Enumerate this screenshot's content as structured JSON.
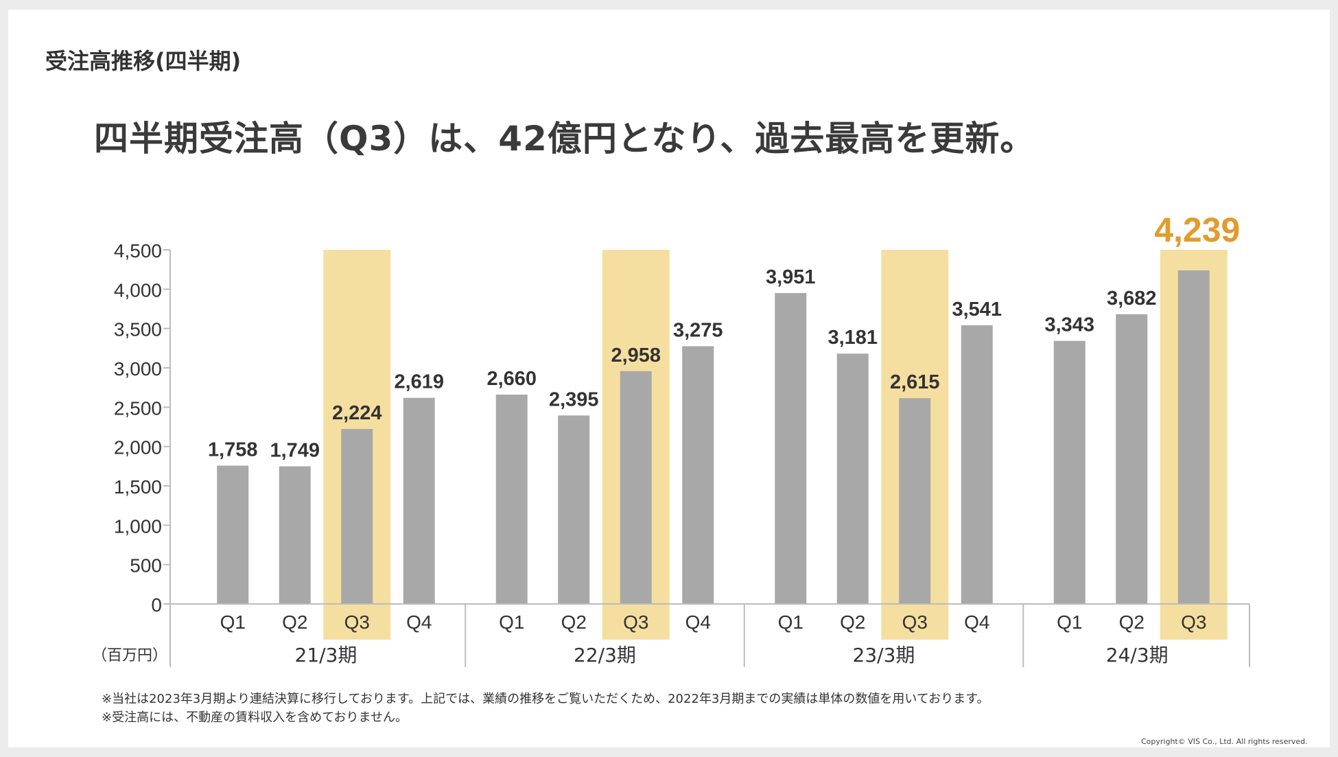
{
  "section_title": "受注高推移(四半期)",
  "headline": "四半期受注高（Q3）は、42億円となり、過去最高を更新。",
  "notes": {
    "line1": "※当社は2023年3月期より連結決算に移行しております。上記では、業績の推移をご覧いただくため、2022年3月期までの実績は単体の数値を用いております。",
    "line2": "※受注高には、不動産の賃料収入を含めておりません。"
  },
  "copyright": "Copyright© VIS Co., Ltd. All rights reserved.",
  "colors": {
    "bar": "#a8a8a8",
    "highlight": "#f5dfa0",
    "accent": "#e39b2c",
    "axis": "#bcbcbc",
    "text": "#333333"
  },
  "chart_data": {
    "type": "bar",
    "unit_label": "（百万円）",
    "ylim": [
      0,
      4500
    ],
    "y_ticks": [
      "0",
      "500",
      "1,000",
      "1,500",
      "2,000",
      "2,500",
      "3,000",
      "3,500",
      "4,000",
      "4,500"
    ],
    "y_tick_values": [
      0,
      500,
      1000,
      1500,
      2000,
      2500,
      3000,
      3500,
      4000,
      4500
    ],
    "highlight_quarter": "Q3",
    "groups": [
      {
        "label": "21/3期",
        "bars": [
          {
            "quarter": "Q1",
            "value": 1758,
            "label": "1,758"
          },
          {
            "quarter": "Q2",
            "value": 1749,
            "label": "1,749"
          },
          {
            "quarter": "Q3",
            "value": 2224,
            "label": "2,224"
          },
          {
            "quarter": "Q4",
            "value": 2619,
            "label": "2,619"
          }
        ]
      },
      {
        "label": "22/3期",
        "bars": [
          {
            "quarter": "Q1",
            "value": 2660,
            "label": "2,660"
          },
          {
            "quarter": "Q2",
            "value": 2395,
            "label": "2,395"
          },
          {
            "quarter": "Q3",
            "value": 2958,
            "label": "2,958"
          },
          {
            "quarter": "Q4",
            "value": 3275,
            "label": "3,275"
          }
        ]
      },
      {
        "label": "23/3期",
        "bars": [
          {
            "quarter": "Q1",
            "value": 3951,
            "label": "3,951"
          },
          {
            "quarter": "Q2",
            "value": 3181,
            "label": "3,181"
          },
          {
            "quarter": "Q3",
            "value": 2615,
            "label": "2,615"
          },
          {
            "quarter": "Q4",
            "value": 3541,
            "label": "3,541"
          }
        ]
      },
      {
        "label": "24/3期",
        "bars": [
          {
            "quarter": "Q1",
            "value": 3343,
            "label": "3,343"
          },
          {
            "quarter": "Q2",
            "value": 3682,
            "label": "3,682"
          },
          {
            "quarter": "Q3",
            "value": 4239,
            "label": "4,239",
            "emphasis": true
          }
        ]
      }
    ]
  }
}
